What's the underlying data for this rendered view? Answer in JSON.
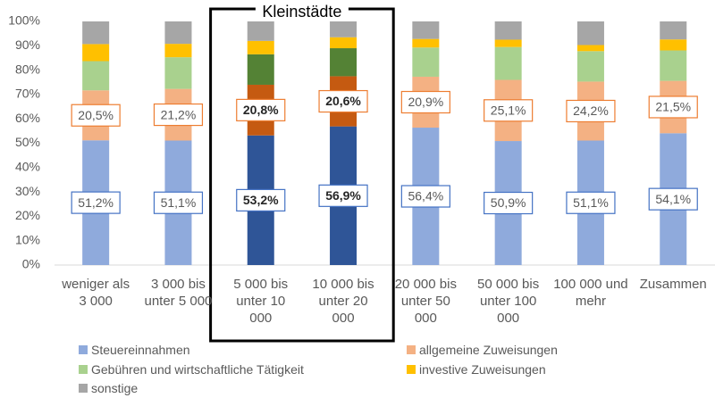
{
  "chart_data": {
    "type": "stacked_bar",
    "categories": [
      "weniger als 3 000",
      "3 000 bis unter 5 000",
      "5 000 bis unter 10 000",
      "10 000 bis unter 20 000",
      "20 000 bis unter 50 000",
      "50 000 bis unter 100 000",
      "100 000 und mehr",
      "Zusammen"
    ],
    "series": [
      {
        "name": "Steuereinnahmen",
        "color": "#8faadc",
        "highlight_color": "#2f5597",
        "label_color": "#4472c4",
        "values": [
          51.2,
          51.1,
          53.2,
          56.9,
          56.4,
          50.9,
          51.1,
          54.1
        ],
        "value_labels": [
          "51,2%",
          "51,1%",
          "53,2%",
          "56,9%",
          "56,4%",
          "50,9%",
          "51,1%",
          "54,1%"
        ]
      },
      {
        "name": "allgemeine Zuweisungen",
        "color": "#f4b183",
        "highlight_color": "#c55a11",
        "label_color": "#ed7d31",
        "values": [
          20.5,
          21.2,
          20.8,
          20.6,
          20.9,
          25.1,
          24.2,
          21.5
        ],
        "value_labels": [
          "20,5%",
          "21,2%",
          "20,8%",
          "20,6%",
          "20,9%",
          "25,1%",
          "24,2%",
          "21,5%"
        ]
      },
      {
        "name": "Gebühren und wirtschaftliche Tätigkeit",
        "color": "#a9d18e",
        "highlight_color": "#548235",
        "values": [
          12,
          13,
          12.5,
          11.5,
          12,
          13.5,
          12.5,
          12.5
        ]
      },
      {
        "name": "investive Zuweisungen",
        "color": "#ffc000",
        "highlight_color": "#ffc000",
        "values": [
          7,
          5.5,
          5.5,
          4.5,
          3.5,
          3,
          2.5,
          4.5
        ]
      },
      {
        "name": "sonstige",
        "color": "#a6a6a6",
        "highlight_color": "#a6a6a6",
        "values": [
          9.3,
          9.2,
          8,
          6.5,
          7.2,
          7.5,
          9.7,
          7.4
        ]
      }
    ],
    "highlight": {
      "label": "Kleinstädte",
      "categories": [
        2,
        3
      ]
    },
    "ylim": [
      0,
      100
    ],
    "yticks": [
      {
        "value": 0,
        "label": "0%"
      },
      {
        "value": 10,
        "label": "10%"
      },
      {
        "value": 20,
        "label": "20%"
      },
      {
        "value": 30,
        "label": "30%"
      },
      {
        "value": 40,
        "label": "40%"
      },
      {
        "value": 50,
        "label": "50%"
      },
      {
        "value": 60,
        "label": "60%"
      },
      {
        "value": 70,
        "label": "70%"
      },
      {
        "value": 80,
        "label": "80%"
      },
      {
        "value": 90,
        "label": "90%"
      },
      {
        "value": 100,
        "label": "100%"
      }
    ],
    "grid": false
  }
}
